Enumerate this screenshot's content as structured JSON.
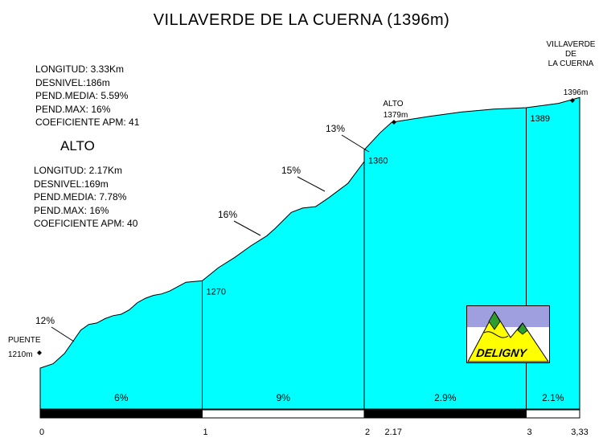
{
  "title": "VILLAVERDE  DE  LA  CUERNA (1396m)",
  "climb_total": {
    "lines": [
      "LONGITUD: 3.33Km",
      "DESNIVEL:186m",
      "PEND.MEDIA: 5.59%",
      "PEND.MAX: 16%",
      "COEFICIENTE APM: 41"
    ]
  },
  "alto_heading": "ALTO",
  "climb_alto": {
    "lines": [
      "LONGITUD: 2.17Km",
      "DESNIVEL:169m",
      "PEND.MEDIA: 7.78%",
      "PEND.MAX: 16%",
      "COEFICIENTE APM: 40"
    ]
  },
  "logo_text": "DELIGNY",
  "colors": {
    "fill": "#00ffff",
    "outline": "#000000",
    "logo_bg": "#9f9fdf",
    "logo_mountain": "#ffff00",
    "logo_peak": "#2e9d2e"
  },
  "chart_data": {
    "type": "area",
    "x_unit": "km",
    "y_unit": "m",
    "xlim": [
      0,
      3.33
    ],
    "profile": [
      [
        0,
        1210
      ],
      [
        0.08,
        1213
      ],
      [
        0.15,
        1220
      ],
      [
        0.2,
        1228
      ],
      [
        0.25,
        1236
      ],
      [
        0.3,
        1240
      ],
      [
        0.35,
        1241
      ],
      [
        0.4,
        1244
      ],
      [
        0.45,
        1246
      ],
      [
        0.5,
        1247
      ],
      [
        0.55,
        1250
      ],
      [
        0.6,
        1255
      ],
      [
        0.65,
        1258
      ],
      [
        0.7,
        1260
      ],
      [
        0.75,
        1261
      ],
      [
        0.8,
        1263
      ],
      [
        0.85,
        1266
      ],
      [
        0.9,
        1269
      ],
      [
        1.0,
        1270
      ],
      [
        1.1,
        1279
      ],
      [
        1.2,
        1286
      ],
      [
        1.3,
        1294
      ],
      [
        1.4,
        1301
      ],
      [
        1.45,
        1306
      ],
      [
        1.55,
        1317
      ],
      [
        1.62,
        1320
      ],
      [
        1.7,
        1321
      ],
      [
        1.78,
        1327
      ],
      [
        1.9,
        1337
      ],
      [
        2.0,
        1352
      ],
      [
        2.0,
        1360
      ],
      [
        2.1,
        1372
      ],
      [
        2.17,
        1379
      ],
      [
        2.4,
        1383
      ],
      [
        2.6,
        1386
      ],
      [
        2.8,
        1388
      ],
      [
        3.0,
        1389
      ],
      [
        3.2,
        1392
      ],
      [
        3.33,
        1396
      ]
    ],
    "ticks": [
      {
        "x": 0,
        "label": "0"
      },
      {
        "x": 1,
        "label": "1"
      },
      {
        "x": 2,
        "label": "2"
      },
      {
        "x": 2.17,
        "label": "2.17"
      },
      {
        "x": 3,
        "label": "3"
      },
      {
        "x": 3.33,
        "label": "3,33"
      }
    ],
    "km_markers": [
      {
        "x": 1,
        "altitude": 1270,
        "label": "1270"
      },
      {
        "x": 2,
        "altitude": 1360,
        "label": "1360"
      },
      {
        "x": 3,
        "altitude": 1389,
        "label": "1389"
      }
    ],
    "segment_slopes": [
      {
        "from": 0,
        "to": 1,
        "label": "6%"
      },
      {
        "from": 1,
        "to": 2,
        "label": "9%"
      },
      {
        "from": 2,
        "to": 3,
        "label": "2.9%"
      },
      {
        "from": 3,
        "to": 3.33,
        "label": "2.1%"
      }
    ],
    "max_slopes": [
      {
        "x": 0.2,
        "altitude": 1228,
        "label": "12%"
      },
      {
        "x": 1.35,
        "altitude": 1297,
        "label": "16%"
      },
      {
        "x": 1.75,
        "altitude": 1324,
        "label": "15%"
      },
      {
        "x": 2.02,
        "altitude": 1355,
        "label": "13%"
      }
    ],
    "points": [
      {
        "x": 0,
        "altitude": 1210,
        "name": "PUENTE",
        "label": "1210m"
      },
      {
        "x": 2.17,
        "altitude": 1379,
        "name": "ALTO",
        "label": "1379m"
      },
      {
        "x": 3.33,
        "altitude": 1396,
        "name": "VILLAVERDE DE LA CUERNA",
        "label": "1396m"
      }
    ]
  }
}
